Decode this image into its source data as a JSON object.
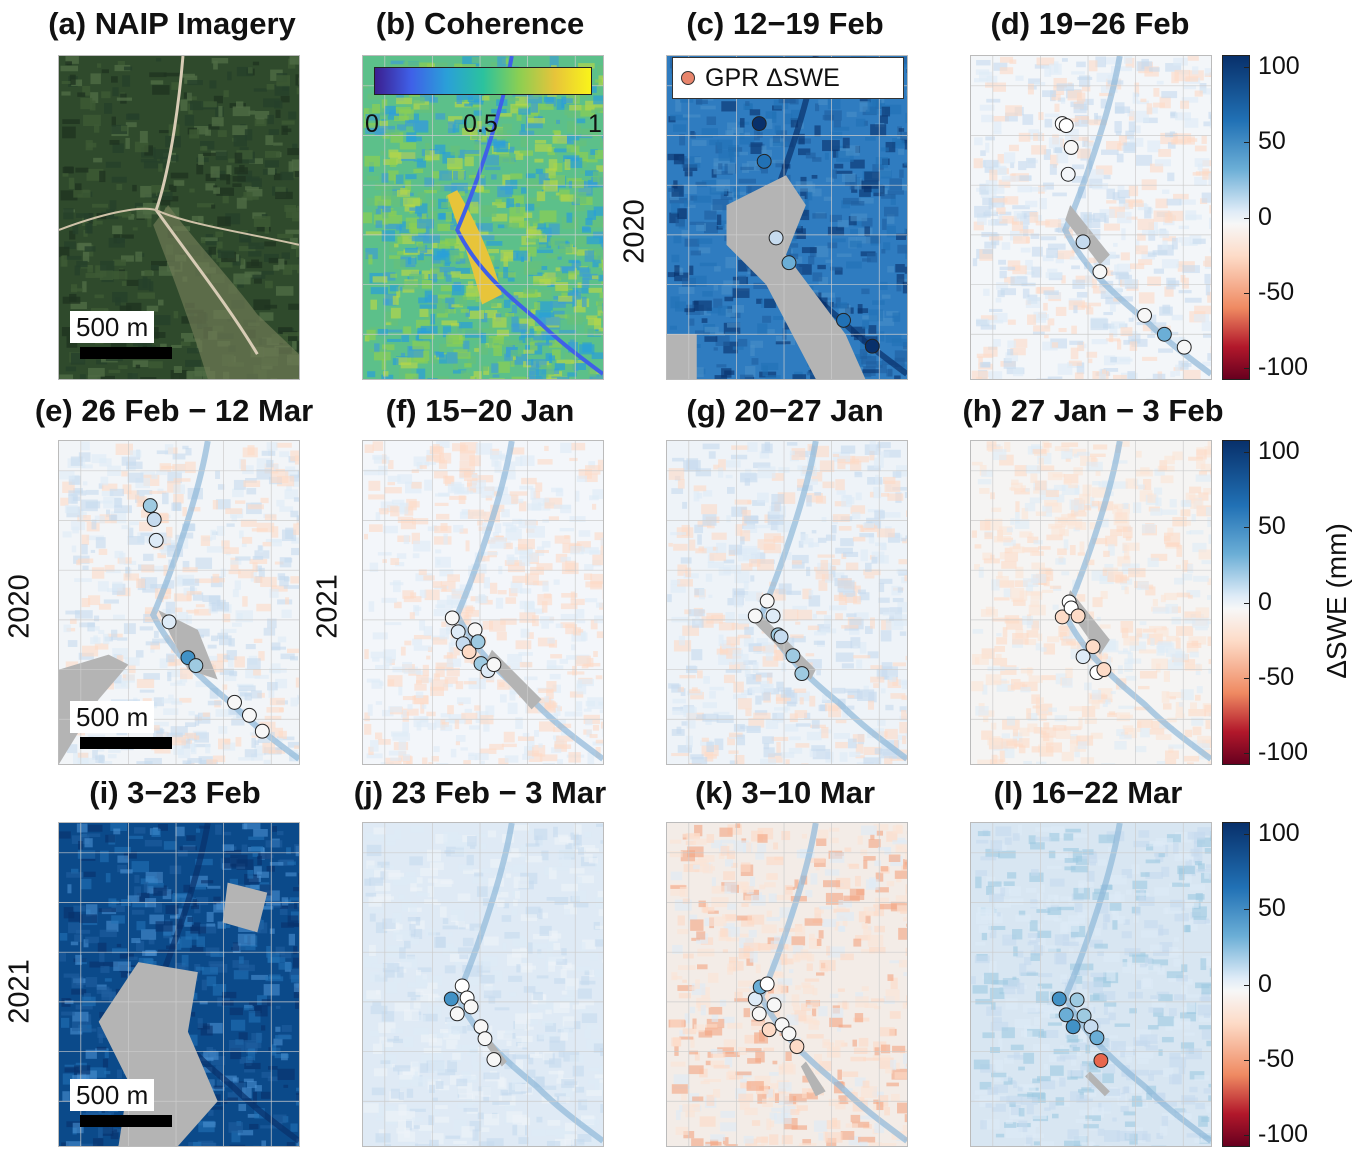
{
  "figure": {
    "panels": [
      {
        "id": "a",
        "label": "(a)",
        "title": "NAIP Imagery",
        "kind": "aerial",
        "year": "",
        "scale_bar": "500 m"
      },
      {
        "id": "b",
        "label": "(b)",
        "title": "Coherence",
        "kind": "coherence",
        "year": "",
        "scale_bar": ""
      },
      {
        "id": "c",
        "label": "(c)",
        "title": "12−19 Feb",
        "kind": "swe_strong_pos",
        "year": "2020",
        "scale_bar": ""
      },
      {
        "id": "d",
        "label": "(d)",
        "title": "19−26 Feb",
        "kind": "swe_weak",
        "year": "",
        "scale_bar": ""
      },
      {
        "id": "e",
        "label": "(e)",
        "title": "26 Feb − 12 Mar",
        "kind": "swe_weak",
        "year": "2020",
        "scale_bar": "500 m"
      },
      {
        "id": "f",
        "label": "(f)",
        "title": "15−20 Jan",
        "kind": "swe_weak",
        "year": "2021",
        "scale_bar": ""
      },
      {
        "id": "g",
        "label": "(g)",
        "title": "20−27 Jan",
        "kind": "swe_weak",
        "year": "",
        "scale_bar": ""
      },
      {
        "id": "h",
        "label": "(h)",
        "title": "27 Jan − 3 Feb",
        "kind": "swe_weak",
        "year": "",
        "scale_bar": ""
      },
      {
        "id": "i",
        "label": "(i)",
        "title": "3−23 Feb",
        "kind": "swe_strong_pos",
        "year": "2021",
        "scale_bar": "500 m"
      },
      {
        "id": "j",
        "label": "(j)",
        "title": "23 Feb − 3 Mar",
        "kind": "swe_light_pos",
        "year": "",
        "scale_bar": ""
      },
      {
        "id": "k",
        "label": "(k)",
        "title": "3−10 Mar",
        "kind": "swe_light_neg",
        "year": "",
        "scale_bar": ""
      },
      {
        "id": "l",
        "label": "(l)",
        "title": "16−22 Mar",
        "kind": "swe_light_pos",
        "year": "",
        "scale_bar": ""
      }
    ],
    "legend": {
      "label": "GPR ΔSWE"
    },
    "coherence_colorbar": {
      "ticks": [
        "0",
        "0.5",
        "1"
      ]
    },
    "colorbar": {
      "label": "ΔSWE (mm)",
      "ticks": [
        "100",
        "50",
        "0",
        "-50",
        "-100"
      ],
      "tick_values": [
        100,
        50,
        0,
        -50,
        -100
      ],
      "range": [
        -100,
        100
      ]
    },
    "colors": {
      "strong_blue": "#08306b",
      "mid_blue": "#2171b5",
      "light_blue": "#c6dbef",
      "neutral": "#f7f7f7",
      "light_red": "#fddbc7",
      "red": "#b2182b",
      "nodata": "#b4b4b4"
    }
  }
}
